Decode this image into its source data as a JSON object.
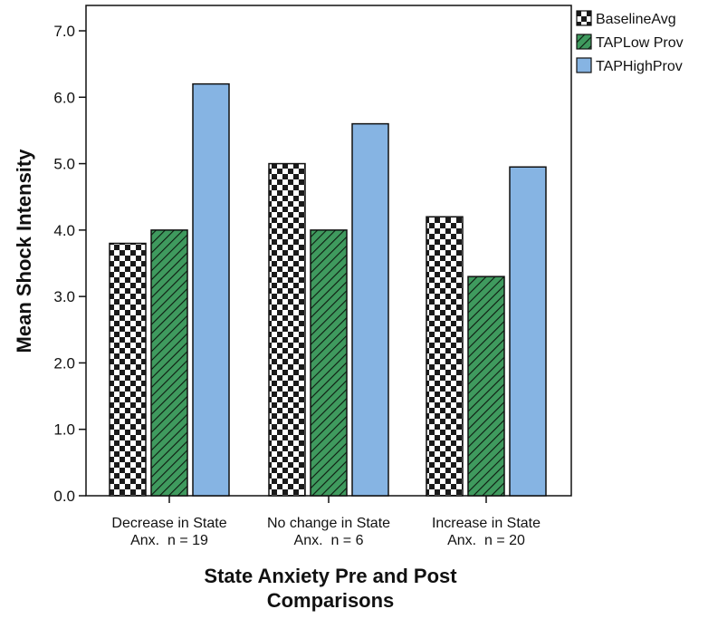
{
  "chart_data": {
    "type": "bar",
    "title": "",
    "xlabel_lines": [
      "State Anxiety Pre and Post",
      "Comparisons"
    ],
    "ylabel": "Mean Shock Intensity",
    "ylim": [
      0,
      7
    ],
    "yticks": [
      "0.0",
      "1.0",
      "2.0",
      "3.0",
      "4.0",
      "5.0",
      "6.0",
      "7.0"
    ],
    "categories": [
      [
        "Decrease in State",
        "Anx.  n = 19"
      ],
      [
        "No change in State",
        "Anx.  n = 6"
      ],
      [
        "Increase in State",
        "Anx.  n = 20"
      ]
    ],
    "series": [
      {
        "name": "BaselineAvg",
        "values": [
          3.8,
          5.0,
          4.2
        ],
        "pattern": "checker",
        "color": "#1a1a1a"
      },
      {
        "name": "TAPLow Prov",
        "values": [
          4.0,
          4.0,
          3.3
        ],
        "pattern": "diagonal",
        "color": "#3f9a5e"
      },
      {
        "name": "TAPHighProv",
        "values": [
          6.2,
          5.6,
          4.95
        ],
        "pattern": "solid",
        "color": "#86b4e3"
      }
    ],
    "legend_position": "top-right",
    "grid": false
  }
}
